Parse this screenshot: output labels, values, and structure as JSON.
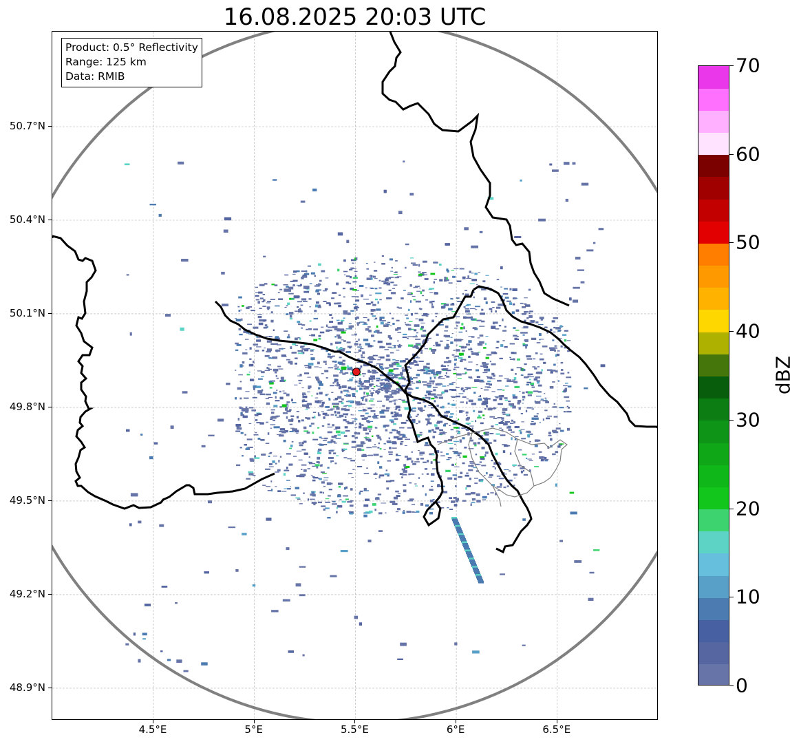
{
  "title": "16.08.2025 20:03 UTC",
  "info": {
    "product": "Product: 0.5° Reflectivity",
    "range": "Range: 125 km",
    "data": "Data: RMIB"
  },
  "axes": {
    "lon_ticks": [
      "4.5°E",
      "5°E",
      "5.5°E",
      "6°E",
      "6.5°E"
    ],
    "lon_values": [
      4.5,
      5.0,
      5.5,
      6.0,
      6.5
    ],
    "lat_ticks": [
      "50.7°N",
      "50.4°N",
      "50.1°N",
      "49.8°N",
      "49.5°N",
      "49.2°N",
      "48.9°N"
    ],
    "lat_values": [
      50.7,
      50.4,
      50.1,
      49.8,
      49.5,
      49.2,
      48.9
    ],
    "lon_range": [
      4.0,
      7.0
    ],
    "lat_range": [
      48.8,
      51.0
    ],
    "grid": true
  },
  "radar": {
    "site_lon": 5.505,
    "site_lat": 49.914,
    "range_km": 125,
    "site_color": "#e31a1c",
    "range_ring_color": "#808080"
  },
  "colorbar": {
    "label": "dBZ",
    "min": 0,
    "max": 70,
    "tick_labels": [
      "0",
      "10",
      "20",
      "30",
      "40",
      "50",
      "60",
      "70"
    ],
    "colors": [
      "#6674a8",
      "#5566a0",
      "#4660a2",
      "#4b7bb1",
      "#59a0c8",
      "#66bfdd",
      "#5dd3c5",
      "#3dd470",
      "#12c61c",
      "#10b718",
      "#0fa617",
      "#0e9416",
      "#0b7d13",
      "#075d0c",
      "#44760b",
      "#aeb100",
      "#ffd700",
      "#ffb300",
      "#ff9900",
      "#ff7e00",
      "#e20000",
      "#c20000",
      "#a00000",
      "#7b0000",
      "#ffe3ff",
      "#ffb0ff",
      "#ff70ff",
      "#e937e9"
    ]
  },
  "colors": {
    "border": "#000000",
    "subregion": "#808080",
    "grid": "#b0b0b0"
  }
}
